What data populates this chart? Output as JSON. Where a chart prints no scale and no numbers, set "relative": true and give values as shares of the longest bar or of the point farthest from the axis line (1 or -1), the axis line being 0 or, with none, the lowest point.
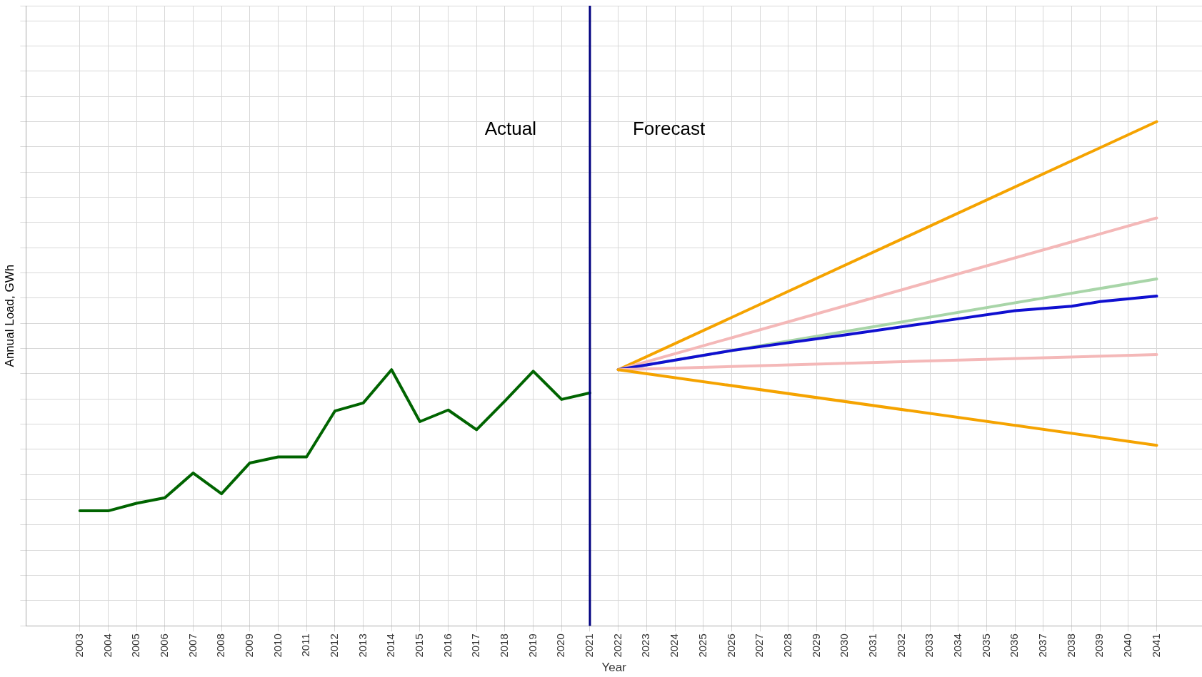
{
  "chart_data": {
    "type": "line",
    "xlabel": "Year",
    "ylabel": "Annual Load, GWh",
    "relative": true,
    "xlim": [
      2001.1,
      2042.6
    ],
    "xticks": [
      2003,
      2004,
      2005,
      2006,
      2007,
      2008,
      2009,
      2010,
      2011,
      2012,
      2013,
      2014,
      2015,
      2016,
      2017,
      2018,
      2019,
      2020,
      2021,
      2022,
      2023,
      2024,
      2025,
      2026,
      2027,
      2028,
      2029,
      2030,
      2031,
      2032,
      2033,
      2034,
      2035,
      2036,
      2037,
      2038,
      2039,
      2040,
      2041
    ],
    "grid": true,
    "legend": false,
    "marker": "none",
    "line_style": "solid",
    "series": [
      {
        "color": "#006400",
        "x": [
          2003,
          2004,
          2005,
          2006,
          2007,
          2008,
          2009,
          2010,
          2011,
          2012,
          2013,
          2014,
          2015,
          2016,
          2017,
          2018,
          2019,
          2020,
          2021
        ],
        "values": [
          0.228,
          0.228,
          0.243,
          0.254,
          0.303,
          0.262,
          0.323,
          0.335,
          0.335,
          0.426,
          0.442,
          0.508,
          0.405,
          0.428,
          0.389,
          0.446,
          0.505,
          0.449,
          0.462
        ]
      },
      {
        "color": "#f5a300",
        "x": [
          2022,
          2041
        ],
        "values": [
          0.508,
          1.0
        ]
      },
      {
        "color": "#f4b8b8",
        "x": [
          2022,
          2041
        ],
        "values": [
          0.508,
          0.809
        ]
      },
      {
        "color": "#a8d5a8",
        "x": [
          2022,
          2041
        ],
        "values": [
          0.508,
          0.688
        ]
      },
      {
        "color": "#1010d0",
        "x": [
          2022,
          2026,
          2030,
          2034,
          2036,
          2038,
          2039,
          2041
        ],
        "values": [
          0.508,
          0.546,
          0.577,
          0.609,
          0.625,
          0.634,
          0.643,
          0.654
        ]
      },
      {
        "color": "#f4b8b8",
        "x": [
          2022,
          2041
        ],
        "values": [
          0.508,
          0.538
        ]
      },
      {
        "color": "#f5a300",
        "x": [
          2022,
          2041
        ],
        "values": [
          0.508,
          0.358
        ]
      }
    ],
    "ref_lines": [
      {
        "axis": "x",
        "value": 2021,
        "color": "#000080"
      }
    ],
    "annotations": [
      "Actual",
      "Forecast"
    ]
  }
}
